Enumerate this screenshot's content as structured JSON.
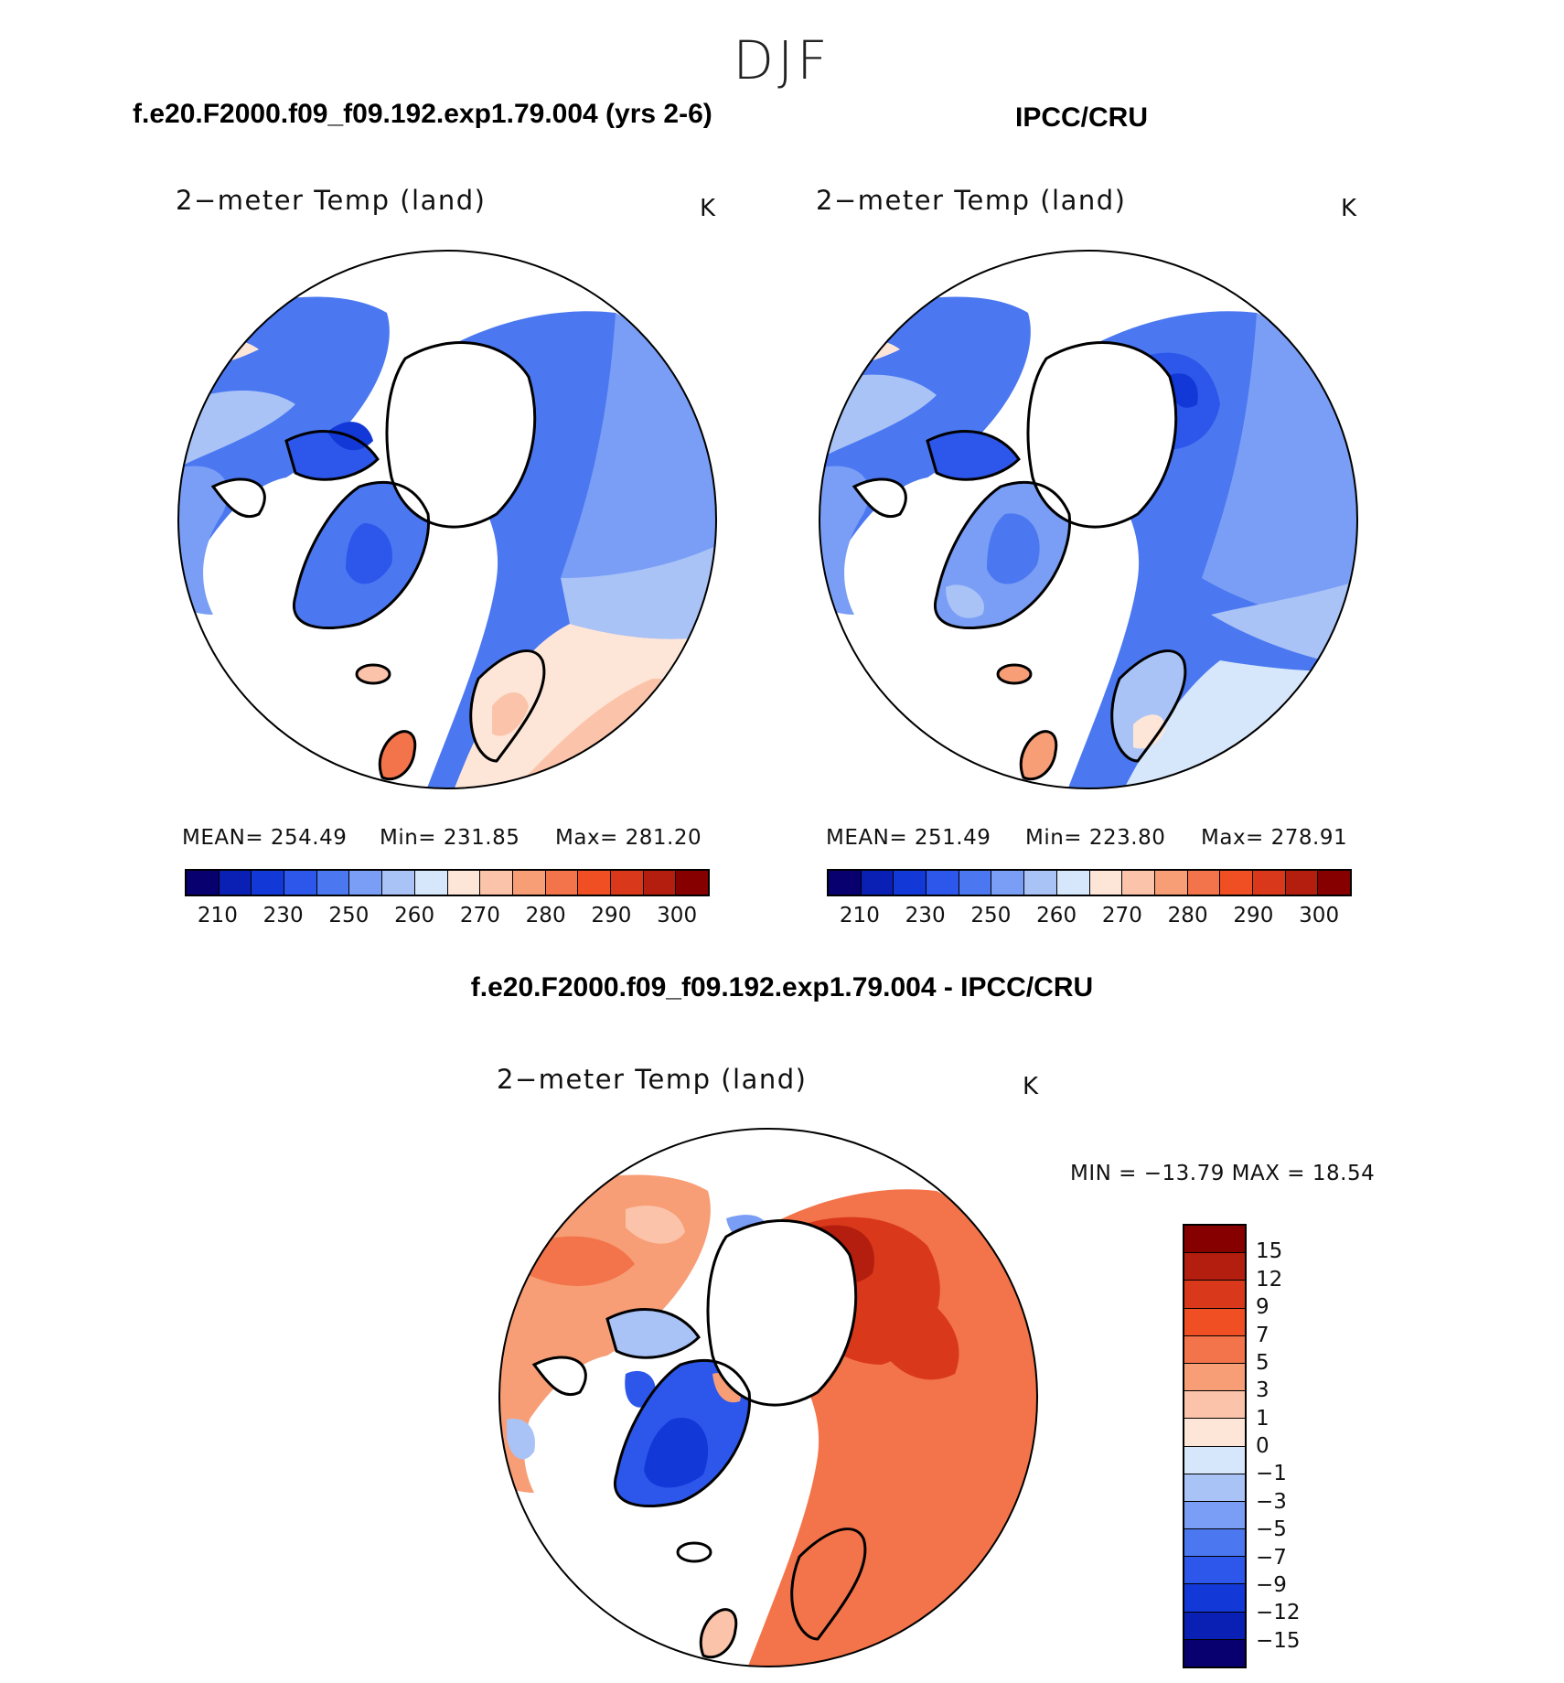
{
  "figure": {
    "season": "DJF",
    "case_title": "f.e20.F2000.f09_f09.192.exp1.79.004 (yrs 2-6)",
    "obs_title": "IPCC/CRU",
    "diff_title": "f.e20.F2000.f09_f09.192.exp1.79.004 - IPCC/CRU"
  },
  "panels": [
    {
      "title": "2−meter Temp (land)",
      "units": "K",
      "mean_text": "MEAN=  254.49",
      "min_text": "Min=  231.85",
      "max_text": "Max=  281.20"
    },
    {
      "title": "2−meter Temp (land)",
      "units": "K",
      "mean_text": "MEAN=  251.49",
      "min_text": "Min=  223.80",
      "max_text": "Max=  278.91"
    }
  ],
  "diff_panel": {
    "title": "2−meter Temp (land)",
    "units": "K",
    "minmax_text": "MIN  =  −13.79  MAX  =    18.54"
  },
  "colorbar_main": {
    "colors": [
      "#08006e",
      "#0a1fb4",
      "#1238d8",
      "#2d57ea",
      "#4b78f1",
      "#7a9ef5",
      "#a9c3f7",
      "#d6e7fb",
      "#fde6d8",
      "#fbc4aa",
      "#f79e76",
      "#f3744a",
      "#f04e23",
      "#d9391a",
      "#b41e0f",
      "#870000"
    ],
    "tick_labels": [
      "210",
      "230",
      "250",
      "260",
      "270",
      "280",
      "290",
      "300"
    ]
  },
  "colorbar_diff": {
    "colors": [
      "#870000",
      "#b41e0f",
      "#d9391a",
      "#f04e23",
      "#f3744a",
      "#f79e76",
      "#fbc4aa",
      "#fde6d8",
      "#d6e7fb",
      "#a9c3f7",
      "#7a9ef5",
      "#4b78f1",
      "#2d57ea",
      "#1238d8",
      "#0a1fb4",
      "#08006e"
    ],
    "tick_labels": [
      "15",
      "12",
      "9",
      "7",
      "5",
      "3",
      "1",
      "0",
      "−1",
      "−3",
      "−5",
      "−7",
      "−9",
      "−12",
      "−15"
    ]
  }
}
